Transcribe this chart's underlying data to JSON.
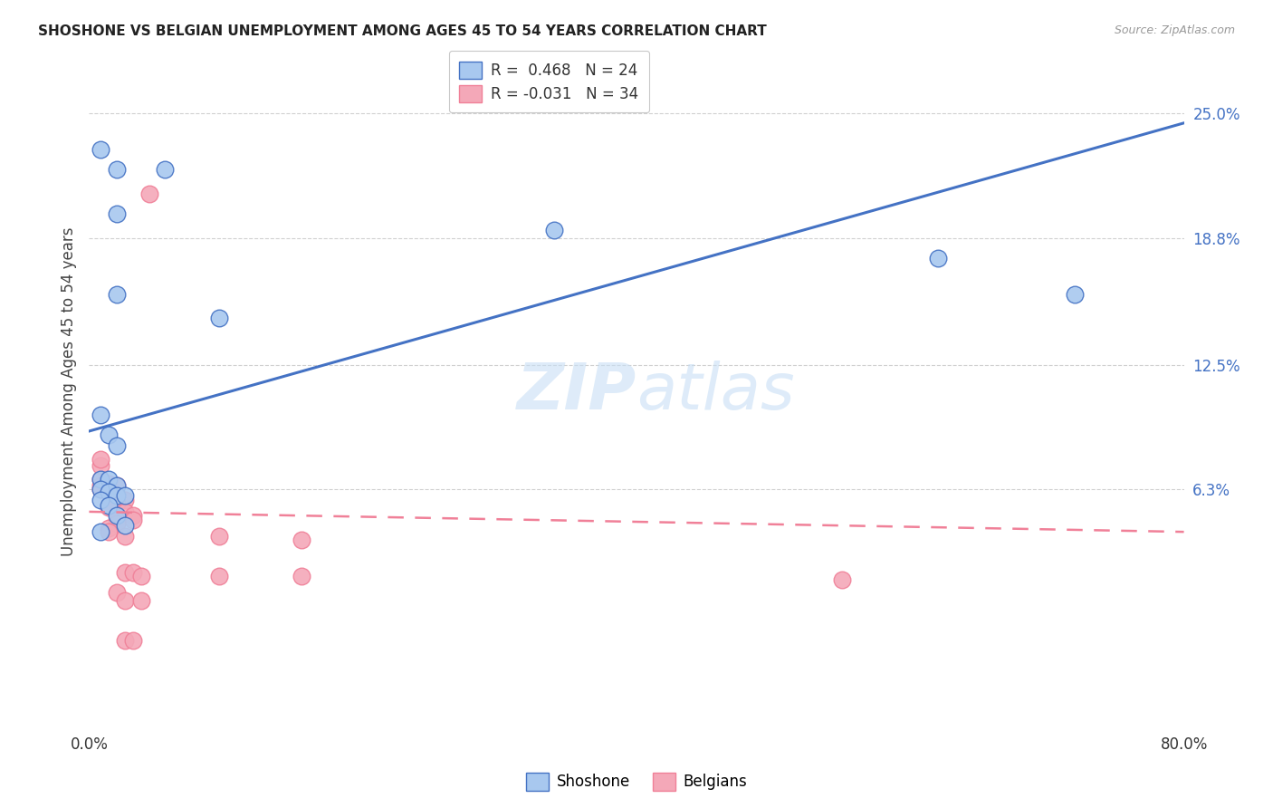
{
  "title": "SHOSHONE VS BELGIAN UNEMPLOYMENT AMONG AGES 45 TO 54 YEARS CORRELATION CHART",
  "source": "Source: ZipAtlas.com",
  "ylabel": "Unemployment Among Ages 45 to 54 years",
  "ytick_labels": [
    "25.0%",
    "18.8%",
    "12.5%",
    "6.3%"
  ],
  "ytick_values": [
    0.25,
    0.188,
    0.125,
    0.063
  ],
  "xlim": [
    0.0,
    0.8
  ],
  "ylim": [
    -0.055,
    0.278
  ],
  "legend_entries": [
    {
      "label": "R =  0.468   N = 24",
      "color": "#a8c8ef"
    },
    {
      "label": "R = -0.031   N = 34",
      "color": "#f4a8b8"
    }
  ],
  "shoshone_color": "#a8c8ef",
  "belgian_color": "#f4a8b8",
  "shoshone_line_color": "#4472c4",
  "belgian_line_color": "#f08098",
  "shoshone_scatter": [
    [
      0.008,
      0.232
    ],
    [
      0.02,
      0.222
    ],
    [
      0.055,
      0.222
    ],
    [
      0.02,
      0.2
    ],
    [
      0.02,
      0.16
    ],
    [
      0.095,
      0.148
    ],
    [
      0.008,
      0.1
    ],
    [
      0.014,
      0.09
    ],
    [
      0.02,
      0.085
    ],
    [
      0.008,
      0.068
    ],
    [
      0.014,
      0.068
    ],
    [
      0.02,
      0.065
    ],
    [
      0.008,
      0.063
    ],
    [
      0.014,
      0.062
    ],
    [
      0.02,
      0.06
    ],
    [
      0.026,
      0.06
    ],
    [
      0.008,
      0.058
    ],
    [
      0.014,
      0.055
    ],
    [
      0.02,
      0.05
    ],
    [
      0.026,
      0.045
    ],
    [
      0.008,
      0.042
    ],
    [
      0.34,
      0.192
    ],
    [
      0.62,
      0.178
    ],
    [
      0.72,
      0.16
    ]
  ],
  "belgian_scatter": [
    [
      0.044,
      0.21
    ],
    [
      0.008,
      0.068
    ],
    [
      0.014,
      0.066
    ],
    [
      0.02,
      0.065
    ],
    [
      0.008,
      0.065
    ],
    [
      0.008,
      0.063
    ],
    [
      0.014,
      0.062
    ],
    [
      0.02,
      0.06
    ],
    [
      0.026,
      0.058
    ],
    [
      0.02,
      0.056
    ],
    [
      0.014,
      0.054
    ],
    [
      0.026,
      0.052
    ],
    [
      0.032,
      0.05
    ],
    [
      0.032,
      0.048
    ],
    [
      0.02,
      0.048
    ],
    [
      0.02,
      0.046
    ],
    [
      0.014,
      0.044
    ],
    [
      0.014,
      0.042
    ],
    [
      0.026,
      0.04
    ],
    [
      0.095,
      0.04
    ],
    [
      0.155,
      0.038
    ],
    [
      0.008,
      0.075
    ],
    [
      0.008,
      0.078
    ],
    [
      0.026,
      0.022
    ],
    [
      0.032,
      0.022
    ],
    [
      0.038,
      0.02
    ],
    [
      0.095,
      0.02
    ],
    [
      0.155,
      0.02
    ],
    [
      0.02,
      0.012
    ],
    [
      0.026,
      0.008
    ],
    [
      0.038,
      0.008
    ],
    [
      0.026,
      -0.012
    ],
    [
      0.032,
      -0.012
    ],
    [
      0.55,
      0.018
    ]
  ],
  "shoshone_trendline_x": [
    0.0,
    0.8
  ],
  "shoshone_trendline_y": [
    0.092,
    0.245
  ],
  "belgian_trendline_x": [
    0.0,
    0.8
  ],
  "belgian_trendline_y": [
    0.052,
    0.042
  ],
  "watermark_zip": "ZIP",
  "watermark_atlas": "atlas",
  "background_color": "#ffffff",
  "grid_color": "#d0d0d0",
  "title_color": "#222222",
  "source_color": "#999999",
  "ylabel_color": "#444444",
  "ytick_color": "#4472c4"
}
